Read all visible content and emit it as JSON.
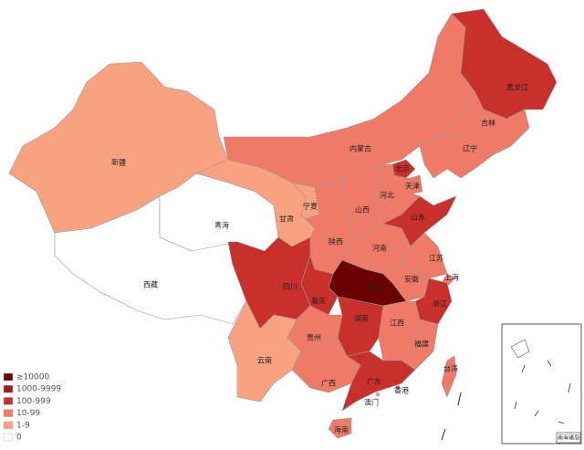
{
  "map": {
    "regions": [
      {
        "name": "新疆",
        "color": "#f9a27f"
      },
      {
        "name": "西藏",
        "color": "#ffffff"
      },
      {
        "name": "青海",
        "color": "#ffffff"
      },
      {
        "name": "甘肃",
        "color": "#f9a27f"
      },
      {
        "name": "宁夏",
        "color": "#f9a27f"
      },
      {
        "name": "内蒙古",
        "color": "#ef7a67"
      },
      {
        "name": "黑龙江",
        "color": "#c9302c"
      },
      {
        "name": "吉林",
        "color": "#ef7a67"
      },
      {
        "name": "辽宁",
        "color": "#ef7a67"
      },
      {
        "name": "北京",
        "color": "#c9302c"
      },
      {
        "name": "天津",
        "color": "#ef7a67"
      },
      {
        "name": "河北",
        "color": "#ef7a67"
      },
      {
        "name": "山西",
        "color": "#ef7a67"
      },
      {
        "name": "陕西",
        "color": "#ef7a67"
      },
      {
        "name": "河南",
        "color": "#ef7a67"
      },
      {
        "name": "山东",
        "color": "#c9302c"
      },
      {
        "name": "江苏",
        "color": "#ef7a67"
      },
      {
        "name": "安徽",
        "color": "#ef7a67"
      },
      {
        "name": "上海",
        "color": "#ef7a67"
      },
      {
        "name": "浙江",
        "color": "#c9302c"
      },
      {
        "name": "湖北",
        "color": "#6b0000"
      },
      {
        "name": "重庆",
        "color": "#c9302c"
      },
      {
        "name": "四川",
        "color": "#c9302c"
      },
      {
        "name": "湖南",
        "color": "#c9302c"
      },
      {
        "name": "江西",
        "color": "#ef7a67"
      },
      {
        "name": "福建",
        "color": "#ef7a67"
      },
      {
        "name": "贵州",
        "color": "#ef7a67"
      },
      {
        "name": "云南",
        "color": "#f9a27f"
      },
      {
        "name": "广西",
        "color": "#ef7a67"
      },
      {
        "name": "广东",
        "color": "#c9302c"
      },
      {
        "name": "海南",
        "color": "#ef7a67"
      },
      {
        "name": "台湾",
        "color": "#ef7a67"
      },
      {
        "name": "香港",
        "color": "#ef7a67"
      },
      {
        "name": "澳门",
        "color": "#f9a27f"
      }
    ],
    "legend": [
      {
        "label": "≥10000",
        "color": "#6b0000"
      },
      {
        "label": "1000-9999",
        "color": "#9b1c1c"
      },
      {
        "label": "100-999",
        "color": "#c9302c"
      },
      {
        "label": "10-99",
        "color": "#ef7a67"
      },
      {
        "label": "1-9",
        "color": "#f9a27f"
      },
      {
        "label": "0",
        "color": "#ffffff"
      }
    ],
    "inset_label": "南海诸岛"
  }
}
